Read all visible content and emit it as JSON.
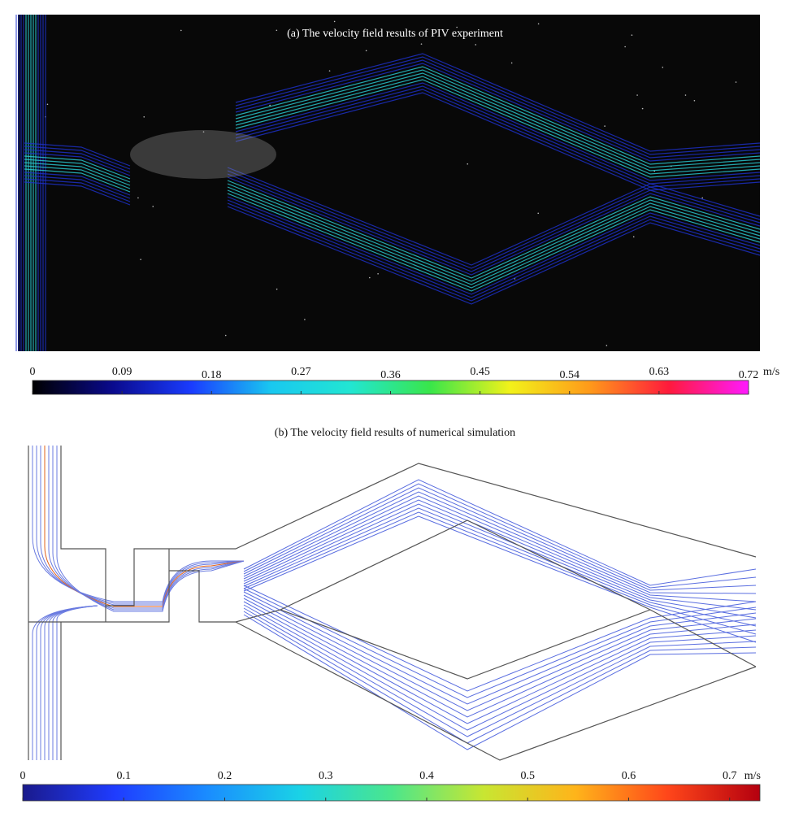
{
  "panels": [
    {
      "title": "(a)  The velocity field results of PIV experiment",
      "colorbar": {
        "range": [
          0,
          0.72
        ],
        "ticks": [
          0,
          0.09,
          0.18,
          0.27,
          0.36,
          0.45,
          0.54,
          0.63,
          0.72
        ],
        "unit": "m/s",
        "colors": [
          "#000000",
          "#0a0a8c",
          "#1a3cff",
          "#19c8f0",
          "#22e6d2",
          "#39e64a",
          "#f2f21a",
          "#ff9a1a",
          "#ff1a3c",
          "#ff1aff"
        ]
      }
    },
    {
      "title": "(b)  The velocity field results of numerical simulation",
      "colorbar": {
        "range": [
          0,
          0.73
        ],
        "ticks": [
          0,
          0.1,
          0.2,
          0.3,
          0.4,
          0.5,
          0.6,
          0.7
        ],
        "unit": "m/s",
        "colors": [
          "#1a1a8c",
          "#1f3cff",
          "#1a8cff",
          "#1ad2e6",
          "#4be68c",
          "#c8e632",
          "#ffb41a",
          "#ff461a",
          "#b4000f"
        ]
      }
    }
  ]
}
